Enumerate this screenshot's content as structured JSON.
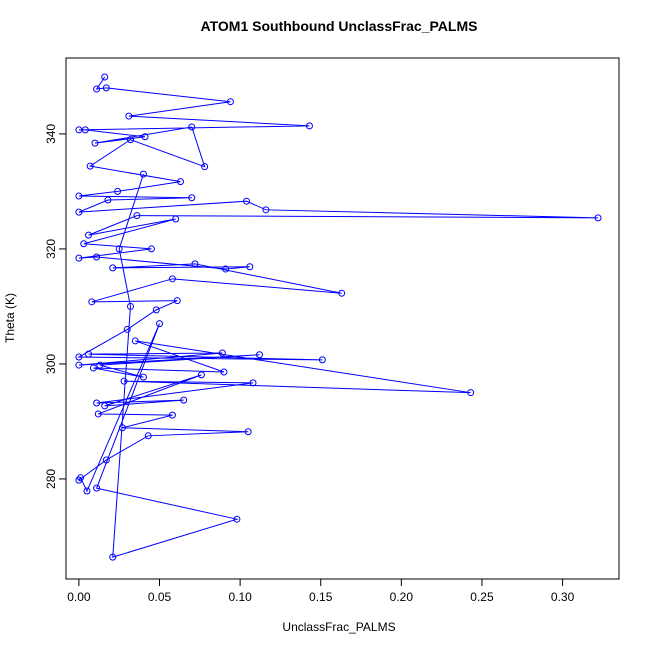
{
  "chart_data": {
    "type": "line",
    "title": "ATOM1 Southbound UnclassFrac_PALMS",
    "x_label": "UnclassFrac_PALMS",
    "y_label": "Theta (K)",
    "color": "#0000ff",
    "markers": true,
    "xlim": [
      -0.008,
      0.335
    ],
    "ylim": [
      262.6,
      353.2
    ],
    "xticks": [
      {
        "value": 0,
        "label": "0.00"
      },
      {
        "value": 0.05,
        "label": "0.05"
      },
      {
        "value": 0.1,
        "label": "0.10"
      },
      {
        "value": 0.15,
        "label": "0.15"
      },
      {
        "value": 0.2,
        "label": "0.20"
      },
      {
        "value": 0.25,
        "label": "0.25"
      },
      {
        "value": 0.3,
        "label": "0.30"
      }
    ],
    "yticks": [
      280,
      300,
      320,
      340
    ],
    "x": [
      0.016,
      0.011,
      0.017,
      0.094,
      0.031,
      0.143,
      0.0,
      0.004,
      0.041,
      0.01,
      0.07,
      0.078,
      0.032,
      0.007,
      0.063,
      0.024,
      0.0,
      0.07,
      0.018,
      0.0,
      0.104,
      0.116,
      0.322,
      0.036,
      0.006,
      0.06,
      0.003,
      0.045,
      0.0,
      0.011,
      0.091,
      0.106,
      0.021,
      0.072,
      0.163,
      0.058,
      0.008,
      0.061,
      0.048,
      0.03,
      0.0,
      0.151,
      0.006,
      0.089,
      0.0,
      0.112,
      0.013,
      0.04,
      0.009,
      0.09,
      0.035,
      0.243,
      0.028,
      0.108,
      0.011,
      0.065,
      0.016,
      0.076,
      0.012,
      0.058,
      0.027,
      0.105,
      0.043,
      0.017,
      0.0,
      0.001,
      0.005,
      0.05,
      0.011,
      0.098,
      0.021,
      0.032,
      0.025,
      0.04
    ],
    "values": [
      349.9,
      347.8,
      348.0,
      345.6,
      343.1,
      341.4,
      340.7,
      340.7,
      339.5,
      338.4,
      341.2,
      334.3,
      339.0,
      334.4,
      331.7,
      330.0,
      329.2,
      328.9,
      328.5,
      326.4,
      328.3,
      326.8,
      325.4,
      325.8,
      322.4,
      325.2,
      320.9,
      320.0,
      318.4,
      318.6,
      316.5,
      316.9,
      316.7,
      317.4,
      312.3,
      314.8,
      310.8,
      311.0,
      309.4,
      306.0,
      301.2,
      300.7,
      301.7,
      301.9,
      299.8,
      301.6,
      299.8,
      297.7,
      299.3,
      298.6,
      304.0,
      295.0,
      297.0,
      296.7,
      293.2,
      293.7,
      292.7,
      298.1,
      291.3,
      291.1,
      288.9,
      288.2,
      287.5,
      283.3,
      279.8,
      280.2,
      277.9,
      307.0,
      278.4,
      273.0,
      266.4,
      310.0,
      320.0,
      333.0
    ]
  }
}
